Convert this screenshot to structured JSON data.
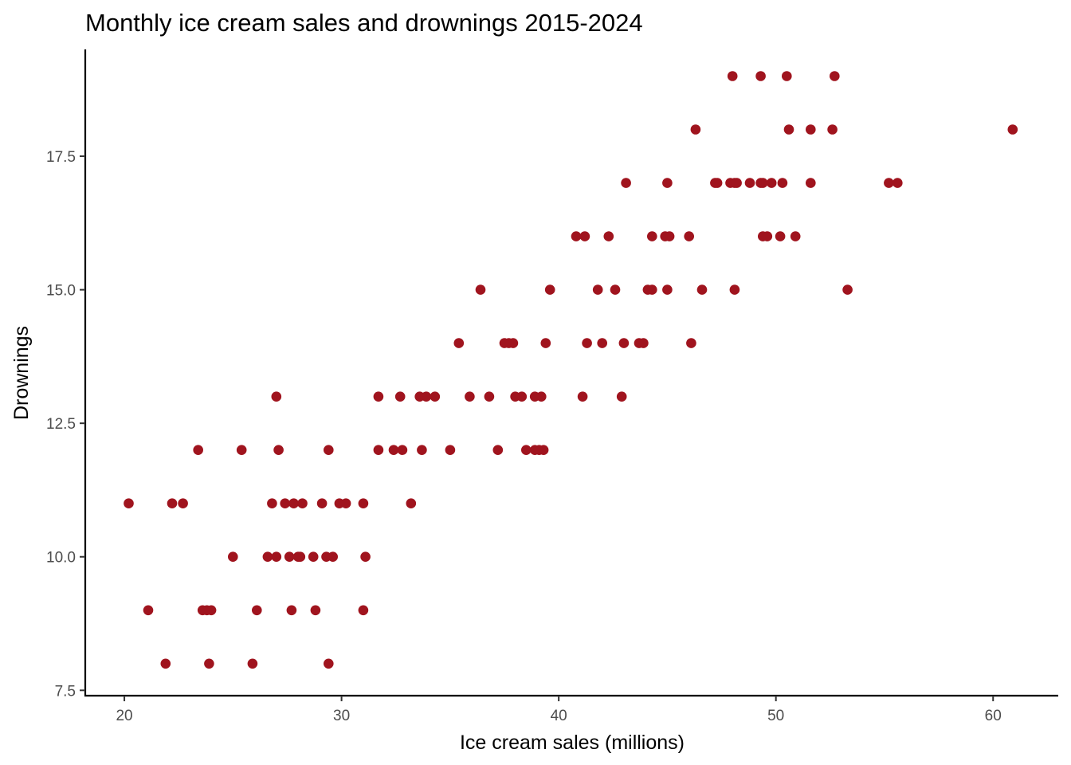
{
  "chart_data": {
    "type": "scatter",
    "title": "Monthly ice cream sales and drownings 2015-2024",
    "xlabel": "Ice cream sales (millions)",
    "ylabel": "Drownings",
    "xlim": [
      18.2,
      63.0
    ],
    "ylim": [
      7.4,
      19.5
    ],
    "xticks": [
      20,
      30,
      40,
      50,
      60
    ],
    "yticks": [
      7.5,
      10.0,
      12.5,
      15.0,
      17.5
    ],
    "xtick_labels": [
      "20",
      "30",
      "40",
      "50",
      "60"
    ],
    "ytick_labels": [
      "7.5",
      "10.0",
      "12.5",
      "15.0",
      "17.5"
    ],
    "grid": false,
    "legend": "none",
    "point_color": "#A0141E",
    "points": [
      {
        "x": 21.9,
        "y": 8
      },
      {
        "x": 23.9,
        "y": 8
      },
      {
        "x": 25.9,
        "y": 8
      },
      {
        "x": 29.4,
        "y": 8
      },
      {
        "x": 21.1,
        "y": 9
      },
      {
        "x": 23.6,
        "y": 9
      },
      {
        "x": 23.8,
        "y": 9
      },
      {
        "x": 24.0,
        "y": 9
      },
      {
        "x": 26.1,
        "y": 9
      },
      {
        "x": 27.7,
        "y": 9
      },
      {
        "x": 28.8,
        "y": 9
      },
      {
        "x": 31.0,
        "y": 9
      },
      {
        "x": 25.0,
        "y": 10
      },
      {
        "x": 26.6,
        "y": 10
      },
      {
        "x": 27.0,
        "y": 10
      },
      {
        "x": 27.6,
        "y": 10
      },
      {
        "x": 28.0,
        "y": 10
      },
      {
        "x": 28.1,
        "y": 10
      },
      {
        "x": 28.7,
        "y": 10
      },
      {
        "x": 29.3,
        "y": 10
      },
      {
        "x": 29.6,
        "y": 10
      },
      {
        "x": 31.1,
        "y": 10
      },
      {
        "x": 20.2,
        "y": 11
      },
      {
        "x": 22.2,
        "y": 11
      },
      {
        "x": 22.7,
        "y": 11
      },
      {
        "x": 26.8,
        "y": 11
      },
      {
        "x": 27.4,
        "y": 11
      },
      {
        "x": 27.8,
        "y": 11
      },
      {
        "x": 28.2,
        "y": 11
      },
      {
        "x": 29.1,
        "y": 11
      },
      {
        "x": 29.9,
        "y": 11
      },
      {
        "x": 30.2,
        "y": 11
      },
      {
        "x": 31.0,
        "y": 11
      },
      {
        "x": 33.2,
        "y": 11
      },
      {
        "x": 23.4,
        "y": 12
      },
      {
        "x": 25.4,
        "y": 12
      },
      {
        "x": 27.1,
        "y": 12
      },
      {
        "x": 29.4,
        "y": 12
      },
      {
        "x": 31.7,
        "y": 12
      },
      {
        "x": 32.4,
        "y": 12
      },
      {
        "x": 32.8,
        "y": 12
      },
      {
        "x": 33.7,
        "y": 12
      },
      {
        "x": 35.0,
        "y": 12
      },
      {
        "x": 37.2,
        "y": 12
      },
      {
        "x": 38.5,
        "y": 12
      },
      {
        "x": 38.9,
        "y": 12
      },
      {
        "x": 39.1,
        "y": 12
      },
      {
        "x": 39.3,
        "y": 12
      },
      {
        "x": 27.0,
        "y": 13
      },
      {
        "x": 31.7,
        "y": 13
      },
      {
        "x": 32.7,
        "y": 13
      },
      {
        "x": 33.6,
        "y": 13
      },
      {
        "x": 33.9,
        "y": 13
      },
      {
        "x": 34.3,
        "y": 13
      },
      {
        "x": 35.9,
        "y": 13
      },
      {
        "x": 36.8,
        "y": 13
      },
      {
        "x": 38.0,
        "y": 13
      },
      {
        "x": 38.3,
        "y": 13
      },
      {
        "x": 38.9,
        "y": 13
      },
      {
        "x": 39.2,
        "y": 13
      },
      {
        "x": 41.1,
        "y": 13
      },
      {
        "x": 42.9,
        "y": 13
      },
      {
        "x": 35.4,
        "y": 14
      },
      {
        "x": 37.5,
        "y": 14
      },
      {
        "x": 37.7,
        "y": 14
      },
      {
        "x": 37.9,
        "y": 14
      },
      {
        "x": 39.4,
        "y": 14
      },
      {
        "x": 41.3,
        "y": 14
      },
      {
        "x": 42.0,
        "y": 14
      },
      {
        "x": 43.0,
        "y": 14
      },
      {
        "x": 43.7,
        "y": 14
      },
      {
        "x": 43.9,
        "y": 14
      },
      {
        "x": 46.1,
        "y": 14
      },
      {
        "x": 36.4,
        "y": 15
      },
      {
        "x": 39.6,
        "y": 15
      },
      {
        "x": 41.8,
        "y": 15
      },
      {
        "x": 42.6,
        "y": 15
      },
      {
        "x": 44.1,
        "y": 15
      },
      {
        "x": 44.3,
        "y": 15
      },
      {
        "x": 45.0,
        "y": 15
      },
      {
        "x": 46.6,
        "y": 15
      },
      {
        "x": 48.1,
        "y": 15
      },
      {
        "x": 53.3,
        "y": 15
      },
      {
        "x": 40.8,
        "y": 16
      },
      {
        "x": 41.2,
        "y": 16
      },
      {
        "x": 42.3,
        "y": 16
      },
      {
        "x": 44.3,
        "y": 16
      },
      {
        "x": 44.9,
        "y": 16
      },
      {
        "x": 45.1,
        "y": 16
      },
      {
        "x": 46.0,
        "y": 16
      },
      {
        "x": 49.4,
        "y": 16
      },
      {
        "x": 49.6,
        "y": 16
      },
      {
        "x": 50.2,
        "y": 16
      },
      {
        "x": 50.9,
        "y": 16
      },
      {
        "x": 43.1,
        "y": 17
      },
      {
        "x": 45.0,
        "y": 17
      },
      {
        "x": 47.2,
        "y": 17
      },
      {
        "x": 47.3,
        "y": 17
      },
      {
        "x": 47.9,
        "y": 17
      },
      {
        "x": 48.1,
        "y": 17
      },
      {
        "x": 48.2,
        "y": 17
      },
      {
        "x": 48.8,
        "y": 17
      },
      {
        "x": 49.3,
        "y": 17
      },
      {
        "x": 49.4,
        "y": 17
      },
      {
        "x": 49.8,
        "y": 17
      },
      {
        "x": 50.3,
        "y": 17
      },
      {
        "x": 51.6,
        "y": 17
      },
      {
        "x": 55.2,
        "y": 17
      },
      {
        "x": 55.6,
        "y": 17
      },
      {
        "x": 46.3,
        "y": 18
      },
      {
        "x": 50.6,
        "y": 18
      },
      {
        "x": 51.6,
        "y": 18
      },
      {
        "x": 52.6,
        "y": 18
      },
      {
        "x": 60.9,
        "y": 18
      },
      {
        "x": 48.0,
        "y": 19
      },
      {
        "x": 49.3,
        "y": 19
      },
      {
        "x": 50.5,
        "y": 19
      },
      {
        "x": 52.7,
        "y": 19
      }
    ]
  }
}
